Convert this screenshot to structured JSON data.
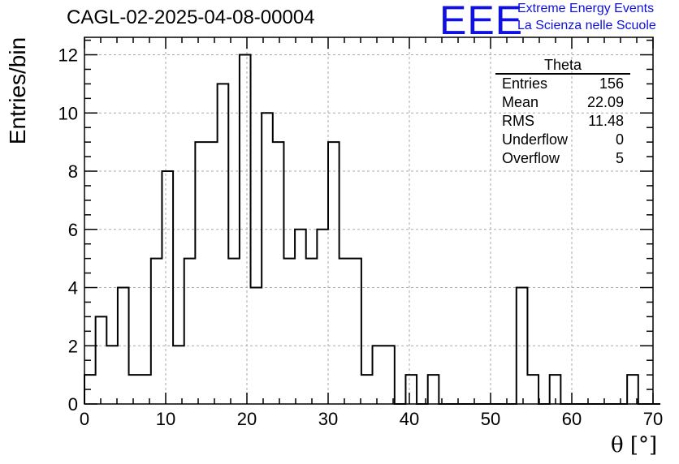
{
  "title": "CAGL-02-2025-04-08-00004",
  "logo": {
    "mark": "EEE",
    "line1": "Extreme Energy Events",
    "line2": "La Scienza nelle Scuole",
    "color": "#1010e0"
  },
  "stats_box": {
    "title": "Theta",
    "rows": [
      {
        "label": "Entries",
        "value": "156"
      },
      {
        "label": "Mean",
        "value": "22.09"
      },
      {
        "label": "RMS",
        "value": "11.48"
      },
      {
        "label": "Underflow",
        "value": "0"
      },
      {
        "label": "Overflow",
        "value": "5"
      }
    ]
  },
  "chart_data": {
    "type": "bar",
    "style": "step-histogram",
    "xlabel": "θ [°]",
    "ylabel": "Entries/bin",
    "xlim": [
      0,
      70
    ],
    "ylim": [
      0,
      12.6
    ],
    "bin_width": 1.3636,
    "x_ticks": [
      "0",
      "10",
      "20",
      "30",
      "40",
      "50",
      "60",
      "70"
    ],
    "y_ticks": [
      "0",
      "2",
      "4",
      "6",
      "8",
      "10",
      "12"
    ],
    "grid": true,
    "values": [
      1,
      3,
      2,
      4,
      1,
      1,
      5,
      8,
      2,
      5,
      9,
      9,
      11,
      5,
      12,
      4,
      10,
      9,
      5,
      6,
      5,
      6,
      9,
      5,
      5,
      1,
      2,
      2,
      0,
      1,
      0,
      1,
      0,
      0,
      0,
      0,
      0,
      0,
      0,
      4,
      1,
      0,
      1,
      0,
      0,
      0,
      0,
      0,
      0,
      1,
      0,
      0
    ]
  }
}
